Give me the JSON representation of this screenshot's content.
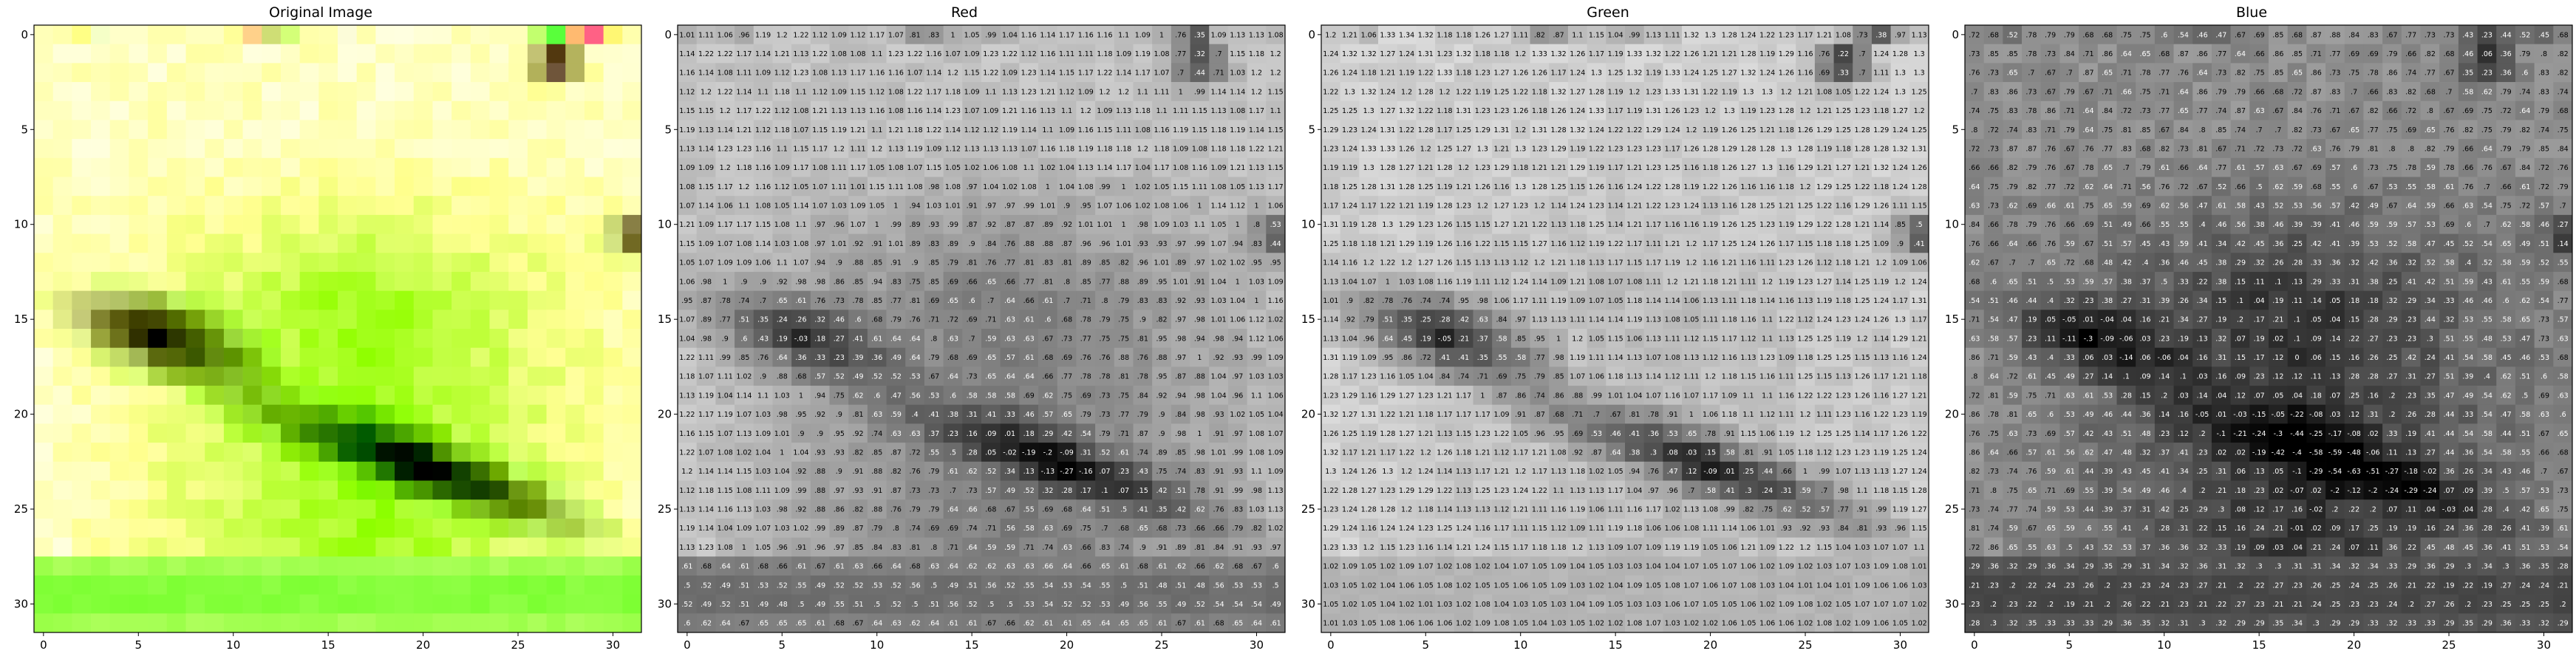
{
  "chart_data": [
    {
      "type": "heatmap",
      "title": "Original Image",
      "channel": "rgb",
      "rows": 32,
      "cols": 32,
      "xticks": [
        0,
        5,
        10,
        15,
        20,
        25,
        30
      ],
      "yticks": [
        0,
        5,
        10,
        15,
        20,
        25,
        30
      ],
      "annotated": false
    },
    {
      "type": "heatmap",
      "title": "Red",
      "channel": "red",
      "colormap": "gray",
      "rows": 32,
      "cols": 32,
      "xticks": [
        0,
        5,
        10,
        15,
        20,
        25,
        30
      ],
      "yticks": [
        0,
        5,
        10,
        15,
        20,
        25,
        30
      ],
      "annotated": true,
      "value_format": "2 significant decimals",
      "approx_value_range": [
        -0.3,
        1.6
      ]
    },
    {
      "type": "heatmap",
      "title": "Green",
      "channel": "green",
      "colormap": "gray",
      "rows": 32,
      "cols": 32,
      "xticks": [
        0,
        5,
        10,
        15,
        20,
        25,
        30
      ],
      "yticks": [
        0,
        5,
        10,
        15,
        20,
        25,
        30
      ],
      "annotated": true,
      "value_format": "2 significant decimals",
      "approx_value_range": [
        -0.3,
        1.6
      ]
    },
    {
      "type": "heatmap",
      "title": "Blue",
      "channel": "blue",
      "colormap": "gray",
      "rows": 32,
      "cols": 32,
      "xticks": [
        0,
        5,
        10,
        15,
        20,
        25,
        30
      ],
      "yticks": [
        0,
        5,
        10,
        15,
        20,
        25,
        30
      ],
      "annotated": true,
      "value_format": "2 significant decimals",
      "approx_value_range": [
        -0.3,
        1.6
      ]
    }
  ],
  "sample_values": {
    "red_row0": [
      1.01,
      1.11,
      1.06,
      0.96,
      1.19,
      1.2,
      1.22,
      1.12,
      1.09,
      1.12,
      1.17,
      1.07,
      0.81,
      0.83,
      1.0,
      1.05,
      0.99,
      1.04,
      1.16,
      1.14,
      1.17,
      1.16,
      1.16,
      1.1,
      1.09,
      1.0,
      0.76,
      0.35,
      1.09,
      1.13,
      1.13,
      1.08
    ],
    "green_row0": [
      1.2,
      1.21,
      1.06,
      1.33,
      1.34,
      1.32,
      1.18,
      1.18,
      1.26,
      1.27,
      1.11,
      0.82,
      0.87,
      1.1,
      1.15,
      1.04,
      0.99,
      1.13,
      1.11,
      1.32,
      1.3,
      1.28,
      1.24,
      1.22,
      1.23,
      1.17,
      1.21,
      1.08,
      0.73,
      0.38,
      0.97,
      1.13
    ],
    "blue_row0": [
      0.72,
      0.68,
      0.52,
      0.78,
      0.79,
      0.79,
      0.68,
      0.68,
      0.75,
      0.75,
      0.6,
      0.54,
      0.46,
      0.47,
      0.67,
      0.69,
      0.85,
      0.68,
      0.87,
      0.88,
      0.84,
      0.83,
      0.67,
      0.77,
      0.73,
      0.73,
      0.43,
      0.23,
      0.44,
      0.52,
      0.45,
      0.68
    ]
  }
}
